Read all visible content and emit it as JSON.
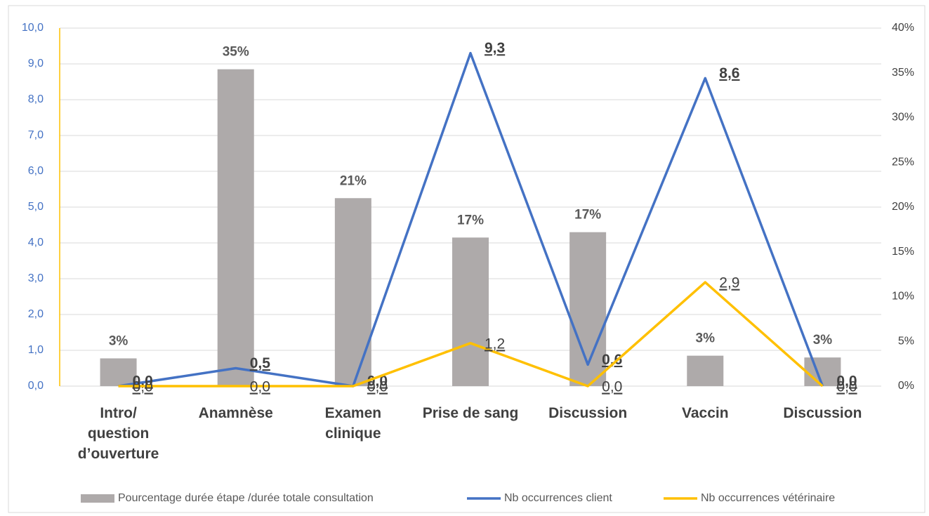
{
  "chart_data": {
    "type": "bar-line",
    "categories": [
      "Intro/ question d’ouverture",
      "Anamnèse",
      "Examen clinique",
      "Prise de sang",
      "Discussion",
      "Vaccin",
      "Discussion"
    ],
    "series": [
      {
        "name": "Pourcentage durée étape /durée totale consultation",
        "type": "bar",
        "axis": "y2",
        "color": "#aeaaaa",
        "values": [
          3.1,
          35.4,
          21.0,
          16.6,
          17.2,
          3.4,
          3.2
        ],
        "value_labels": [
          "3%",
          "35%",
          "21%",
          "17%",
          "17%",
          "3%",
          "3%"
        ]
      },
      {
        "name": "Nb occurrences client",
        "type": "line",
        "axis": "y",
        "color": "#4472c4",
        "values": [
          0.0,
          0.5,
          0.0,
          9.3,
          0.6,
          8.6,
          0.0
        ],
        "value_labels": [
          "0,0",
          "0,5",
          "0,0",
          "9,3",
          "0,6",
          "8,6",
          "0,0"
        ]
      },
      {
        "name": "Nb occurrences  vétérinaire",
        "type": "line",
        "axis": "y",
        "color": "#ffc000",
        "values": [
          0.0,
          0.0,
          0.0,
          1.2,
          0.0,
          2.9,
          0.0
        ],
        "value_labels": [
          "0,0",
          "0,0",
          "0,0",
          "1,2",
          "0,0",
          "2,9",
          "0,0"
        ]
      }
    ],
    "ylim": [
      0,
      10
    ],
    "yticks": [
      {
        "value": 0,
        "label": "0,0"
      },
      {
        "value": 1,
        "label": "1,0"
      },
      {
        "value": 2,
        "label": "2,0"
      },
      {
        "value": 3,
        "label": "3,0"
      },
      {
        "value": 4,
        "label": "4,0"
      },
      {
        "value": 5,
        "label": "5,0"
      },
      {
        "value": 6,
        "label": "6,0"
      },
      {
        "value": 7,
        "label": "7,0"
      },
      {
        "value": 8,
        "label": "8,0"
      },
      {
        "value": 9,
        "label": "9,0"
      },
      {
        "value": 10,
        "label": "10,0"
      }
    ],
    "y2lim": [
      0,
      40
    ],
    "y2ticks": [
      {
        "value": 0,
        "label": "0%"
      },
      {
        "value": 5,
        "label": "5%"
      },
      {
        "value": 10,
        "label": "10%"
      },
      {
        "value": 15,
        "label": "15%"
      },
      {
        "value": 20,
        "label": "20%"
      },
      {
        "value": 25,
        "label": "25%"
      },
      {
        "value": 30,
        "label": "30%"
      },
      {
        "value": 35,
        "label": "35%"
      },
      {
        "value": 40,
        "label": "40%"
      }
    ],
    "grid": true,
    "legend": "bottom"
  }
}
